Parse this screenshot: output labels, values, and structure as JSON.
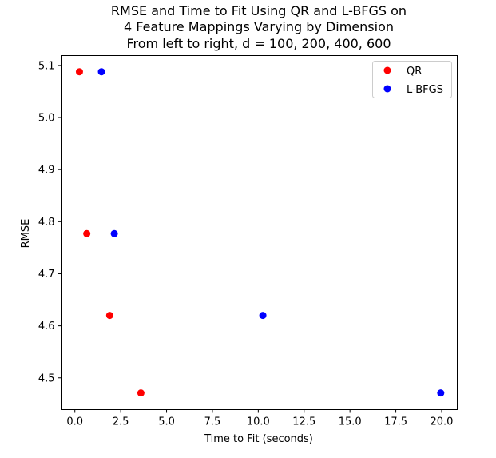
{
  "chart_data": {
    "type": "scatter",
    "title_lines": [
      "RMSE and Time to Fit Using QR and L-BFGS on",
      "4 Feature Mappings Varying by Dimension",
      "From left to right, d = 100, 200, 400, 600"
    ],
    "xlabel": "Time to Fit (seconds)",
    "ylabel": "RMSE",
    "xlim": [
      -0.75,
      20.85
    ],
    "ylim": [
      4.439,
      5.119
    ],
    "xticks": [
      0.0,
      2.5,
      5.0,
      7.5,
      10.0,
      12.5,
      15.0,
      17.5,
      20.0
    ],
    "xtick_labels": [
      "0.0",
      "2.5",
      "5.0",
      "7.5",
      "10.0",
      "12.5",
      "15.0",
      "17.5",
      "20.0"
    ],
    "yticks": [
      4.5,
      4.6,
      4.7,
      4.8,
      4.9,
      5.0,
      5.1
    ],
    "ytick_labels": [
      "4.5",
      "4.6",
      "4.7",
      "4.8",
      "4.9",
      "5.0",
      "5.1"
    ],
    "grid": false,
    "legend_position": "top-right",
    "series": [
      {
        "name": "QR",
        "color": "#ff0000",
        "x": [
          0.25,
          0.65,
          1.9,
          3.6
        ],
        "y": [
          5.088,
          4.777,
          4.62,
          4.471
        ]
      },
      {
        "name": "L-BFGS",
        "color": "#0000ff",
        "x": [
          1.45,
          2.15,
          10.25,
          19.95
        ],
        "y": [
          5.088,
          4.777,
          4.62,
          4.471
        ]
      }
    ]
  }
}
